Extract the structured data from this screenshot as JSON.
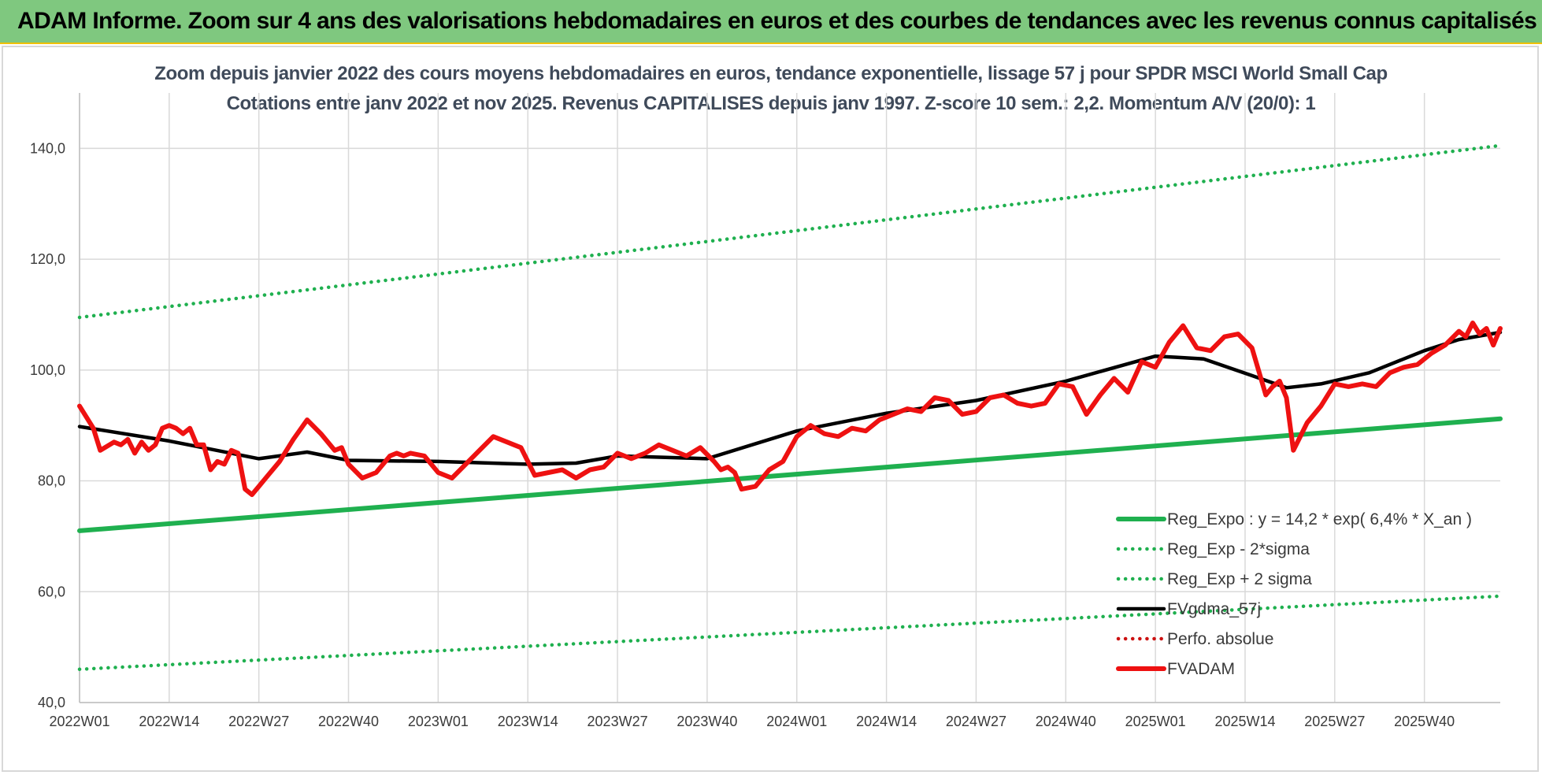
{
  "header": {
    "title": "ADAM Informe. Zoom sur 4 ans des valorisations hebdomadaires en euros et des courbes de tendances avec les revenus connus capitalisés"
  },
  "colors": {
    "banner": "#7fc87f",
    "trend": "#1fb04f",
    "smooth": "#000000",
    "price": "#ee1111",
    "perfo": "#cc1111"
  },
  "chart_data": {
    "type": "line",
    "title": "Zoom depuis janvier 2022 des cours moyens hebdomadaires en euros, tendance exponentielle, lissage 57 j pour SPDR MSCI World Small Cap",
    "subtitle": "Cotations entre janv 2022 et nov 2025. Revenus CAPITALISES depuis janv 1997. Z-score 10 sem.: 2,2. Momentum A/V (20/0): 1",
    "xlabel": "",
    "ylabel": "",
    "ylim": [
      40,
      150
    ],
    "yticks": [
      "40,0",
      "60,0",
      "80,0",
      "100,0",
      "120,0",
      "140,0"
    ],
    "x_tick_labels": [
      "2022W01",
      "2022W14",
      "2022W27",
      "2022W40",
      "2023W01",
      "2023W14",
      "2023W27",
      "2023W40",
      "2024W01",
      "2024W14",
      "2024W27",
      "2024W40",
      "2025W01",
      "2025W14",
      "2025W27",
      "2025W40"
    ],
    "x_range_weeks": [
      0,
      206
    ],
    "grid": true,
    "legend_position": "bottom-right",
    "series": [
      {
        "name": "Reg_Expo : y = 14,2 * exp( 6,4% *  X_an )",
        "style": "solid-thick",
        "color": "#1fb04f",
        "x": [
          0,
          206
        ],
        "y": [
          71.0,
          91.2
        ]
      },
      {
        "name": "Reg_Exp - 2*sigma",
        "style": "dotted",
        "color": "#1fb04f",
        "x": [
          0,
          206
        ],
        "y": [
          46.0,
          59.2
        ]
      },
      {
        "name": "Reg_Exp + 2 sigma",
        "style": "dotted",
        "color": "#1fb04f",
        "x": [
          0,
          206
        ],
        "y": [
          109.5,
          140.5
        ]
      },
      {
        "name": "FVgdma_57j",
        "style": "solid",
        "color": "#000000",
        "x": [
          0,
          13,
          26,
          33,
          39,
          52,
          65,
          72,
          78,
          91,
          104,
          117,
          130,
          143,
          156,
          159,
          163,
          170,
          175,
          180,
          187,
          195,
          200,
          206
        ],
        "y": [
          89.8,
          87.2,
          84.0,
          85.2,
          83.7,
          83.5,
          83.0,
          83.2,
          84.5,
          84.0,
          89.0,
          92.2,
          94.5,
          98.0,
          102.5,
          102.3,
          102.0,
          99.0,
          96.8,
          97.5,
          99.5,
          103.5,
          105.5,
          106.8
        ]
      },
      {
        "name": "Perfo. absolue",
        "style": "dotted",
        "color": "#cc1111",
        "x": [],
        "y": []
      },
      {
        "name": "FVADAM",
        "style": "solid-thick",
        "color": "#ee1111",
        "x": [
          0,
          2,
          3,
          5,
          6,
          7,
          8,
          9,
          10,
          11,
          12,
          13,
          14,
          15,
          16,
          17,
          18,
          19,
          20,
          21,
          22,
          23,
          24,
          25,
          26,
          27,
          29,
          31,
          33,
          35,
          37,
          38,
          39,
          41,
          43,
          45,
          46,
          47,
          48,
          50,
          52,
          54,
          56,
          58,
          60,
          61,
          62,
          63,
          64,
          66,
          68,
          70,
          72,
          74,
          76,
          78,
          80,
          82,
          84,
          86,
          88,
          90,
          92,
          93,
          94,
          95,
          96,
          98,
          100,
          102,
          104,
          106,
          108,
          110,
          112,
          114,
          116,
          118,
          120,
          122,
          124,
          126,
          128,
          130,
          132,
          134,
          136,
          138,
          140,
          142,
          144,
          146,
          148,
          150,
          152,
          154,
          156,
          158,
          160,
          162,
          164,
          166,
          168,
          170,
          172,
          173,
          174,
          175,
          176,
          178,
          180,
          182,
          184,
          186,
          188,
          190,
          192,
          194,
          196,
          198,
          200,
          201,
          202,
          203,
          204,
          205,
          206
        ],
        "y": [
          93.5,
          89.5,
          85.5,
          87.0,
          86.5,
          87.5,
          85.0,
          87.0,
          85.5,
          86.5,
          89.5,
          90.0,
          89.5,
          88.5,
          89.5,
          86.5,
          86.5,
          82.0,
          83.5,
          83.0,
          85.5,
          85.0,
          78.5,
          77.5,
          79.0,
          80.5,
          83.5,
          87.5,
          91.0,
          88.5,
          85.5,
          86.0,
          83.0,
          80.5,
          81.5,
          84.5,
          85.0,
          84.5,
          85.0,
          84.5,
          81.5,
          80.5,
          83.0,
          85.5,
          88.0,
          87.5,
          87.0,
          86.5,
          86.0,
          81.0,
          81.5,
          82.0,
          80.5,
          82.0,
          82.5,
          85.0,
          84.0,
          85.0,
          86.5,
          85.5,
          84.5,
          86.0,
          83.5,
          82.0,
          82.5,
          81.5,
          78.5,
          79.0,
          82.0,
          83.5,
          88.0,
          90.0,
          88.5,
          88.0,
          89.5,
          89.0,
          91.0,
          92.0,
          93.0,
          92.5,
          95.0,
          94.5,
          92.0,
          92.5,
          95.0,
          95.5,
          94.0,
          93.5,
          94.0,
          97.5,
          97.0,
          92.0,
          95.5,
          98.5,
          96.0,
          101.5,
          100.5,
          105.0,
          108.0,
          104.0,
          103.5,
          106.0,
          106.5,
          104.0,
          95.5,
          97.0,
          98.0,
          95.0,
          85.5,
          90.5,
          93.5,
          97.5,
          97.0,
          97.5,
          97.0,
          99.5,
          100.5,
          101.0,
          103.0,
          104.5,
          107.0,
          106.0,
          108.5,
          106.5,
          107.5,
          104.5,
          107.5
        ]
      }
    ]
  }
}
